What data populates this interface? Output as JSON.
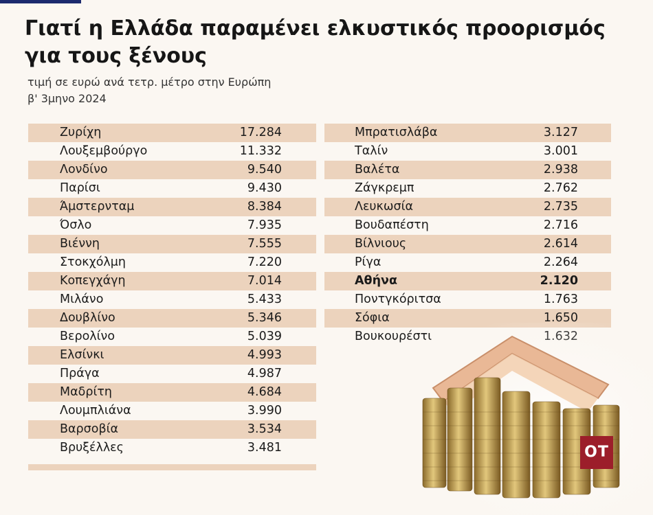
{
  "title": "Γιατί η Ελλάδα παραμένει ελκυστικός προορισμός για τους ξένους",
  "subtitle_line1": "τιμή σε ευρώ ανά τετρ. μέτρο στην Ευρώπη",
  "subtitle_line2": "β' 3μηνο 2024",
  "logo": "ΟΤ",
  "colors": {
    "row_shade": "#ecd3bd",
    "logo_bg": "#9c1e2a",
    "accent_rule": "#1c2a6e"
  },
  "highlight": "Αθήνα",
  "chart_data": {
    "type": "table",
    "columns": [
      [
        {
          "city": "Ζυρίχη",
          "value": "17.284"
        },
        {
          "city": "Λουξεμβούργο",
          "value": "11.332"
        },
        {
          "city": "Λονδίνο",
          "value": "9.540"
        },
        {
          "city": "Παρίσι",
          "value": "9.430"
        },
        {
          "city": "Άμστερνταμ",
          "value": "8.384"
        },
        {
          "city": "Όσλο",
          "value": "7.935"
        },
        {
          "city": "Βιέννη",
          "value": "7.555"
        },
        {
          "city": "Στοκχόλμη",
          "value": "7.220"
        },
        {
          "city": "Κοπεγχάγη",
          "value": "7.014"
        },
        {
          "city": "Μιλάνο",
          "value": "5.433"
        },
        {
          "city": "Δουβλίνο",
          "value": "5.346"
        },
        {
          "city": "Βερολίνο",
          "value": "5.039"
        },
        {
          "city": "Ελσίνκι",
          "value": "4.993"
        },
        {
          "city": "Πράγα",
          "value": "4.987"
        },
        {
          "city": "Μαδρίτη",
          "value": "4.684"
        },
        {
          "city": "Λουμπλιάνα",
          "value": "3.990"
        },
        {
          "city": "Βαρσοβία",
          "value": "3.534"
        },
        {
          "city": "Βρυξέλλες",
          "value": "3.481"
        }
      ],
      [
        {
          "city": "Μπρατισλάβα",
          "value": "3.127"
        },
        {
          "city": "Ταλίν",
          "value": "3.001"
        },
        {
          "city": "Βαλέτα",
          "value": "2.938"
        },
        {
          "city": "Ζάγκρεμπ",
          "value": "2.762"
        },
        {
          "city": "Λευκωσία",
          "value": "2.735"
        },
        {
          "city": "Βουδαπέστη",
          "value": "2.716"
        },
        {
          "city": "Βίλνιους",
          "value": "2.614"
        },
        {
          "city": "Ρίγα",
          "value": "2.264"
        },
        {
          "city": "Αθήνα",
          "value": "2.120"
        },
        {
          "city": "Ποντγκόριτσα",
          "value": "1.763"
        },
        {
          "city": "Σόφια",
          "value": "1.650"
        },
        {
          "city": "Βουκουρέστι",
          "value": "1.632"
        }
      ]
    ]
  }
}
